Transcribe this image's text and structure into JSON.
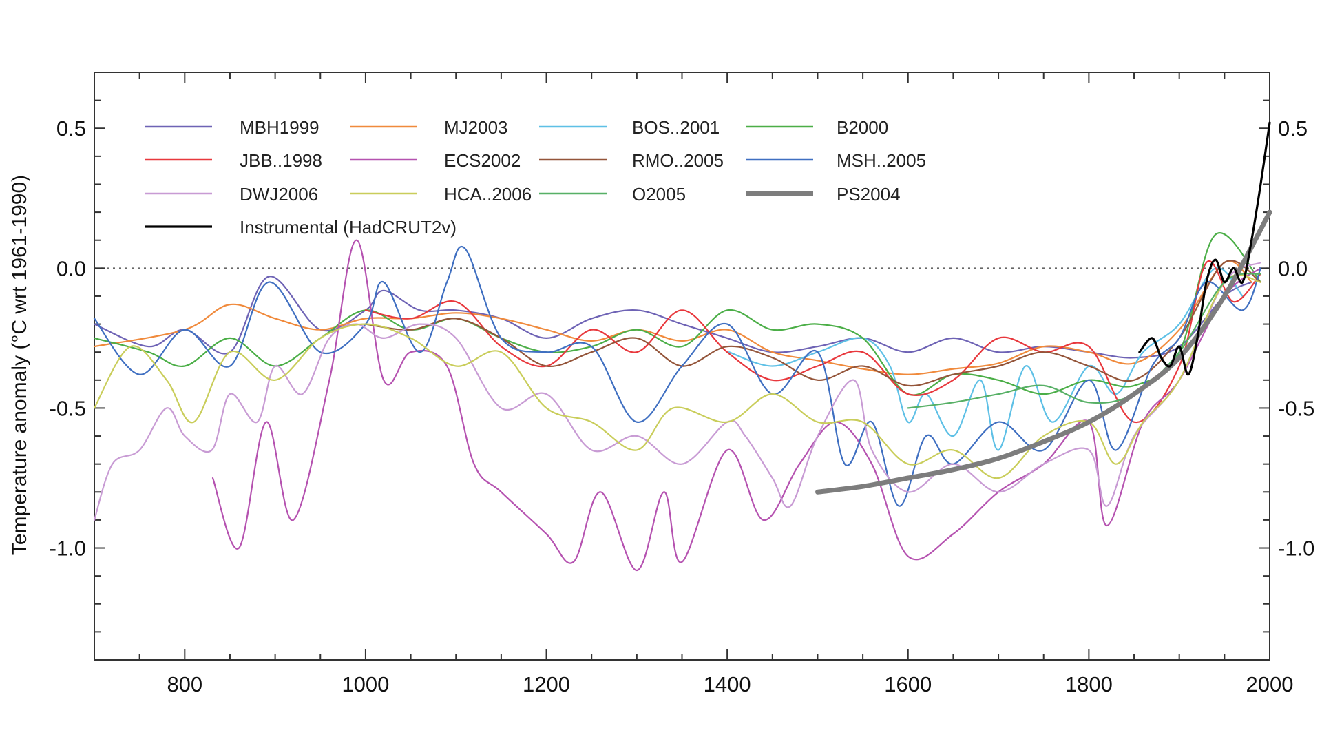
{
  "chart_data": {
    "type": "line",
    "title": "",
    "xlabel": "",
    "ylabel": "Temperature anomaly  (°C wrt 1961-1990)",
    "xlim": [
      700,
      2000
    ],
    "ylim": [
      -1.4,
      0.7
    ],
    "x_ticks": [
      800,
      1000,
      1200,
      1400,
      1600,
      1800,
      2000
    ],
    "x_tick_labels": [
      "800",
      "1000",
      "1200",
      "1400",
      "1600",
      "1800",
      "2000"
    ],
    "y_ticks": [
      0.5,
      0.0,
      -0.5,
      -1.0
    ],
    "y_tick_labels_left": [
      "0.5",
      "0.0",
      "-0.5",
      "-1.0"
    ],
    "y_tick_labels_right": [
      "0.5",
      "0.0",
      "-0.5",
      "-1.0"
    ],
    "zero_line": true,
    "legend_position": "top-left",
    "series": [
      {
        "name": "MBH1999",
        "color": "#6e63b5",
        "x": [
          700,
          760,
          800,
          850,
          893,
          950,
          1000,
          1020,
          1060,
          1100,
          1150,
          1200,
          1250,
          1300,
          1350,
          1400,
          1450,
          1500,
          1550,
          1600,
          1650,
          1700,
          1750,
          1800,
          1850,
          1900,
          1950,
          1980
        ],
        "y": [
          -0.2,
          -0.28,
          -0.22,
          -0.3,
          -0.03,
          -0.22,
          -0.15,
          -0.08,
          -0.15,
          -0.15,
          -0.18,
          -0.25,
          -0.18,
          -0.15,
          -0.2,
          -0.25,
          -0.3,
          -0.28,
          -0.25,
          -0.3,
          -0.25,
          -0.3,
          -0.28,
          -0.3,
          -0.32,
          -0.28,
          -0.1,
          -0.05
        ]
      },
      {
        "name": "MJ2003",
        "color": "#f08a3c",
        "x": [
          700,
          800,
          850,
          900,
          950,
          1000,
          1050,
          1100,
          1150,
          1200,
          1250,
          1300,
          1350,
          1400,
          1450,
          1500,
          1550,
          1600,
          1650,
          1700,
          1750,
          1800,
          1850,
          1900,
          1950,
          1980
        ],
        "y": [
          -0.28,
          -0.22,
          -0.13,
          -0.18,
          -0.22,
          -0.18,
          -0.18,
          -0.16,
          -0.18,
          -0.22,
          -0.26,
          -0.22,
          -0.26,
          -0.22,
          -0.3,
          -0.33,
          -0.36,
          -0.38,
          -0.36,
          -0.34,
          -0.28,
          -0.3,
          -0.34,
          -0.22,
          0.02,
          -0.05
        ]
      },
      {
        "name": "BOS..2001",
        "color": "#5ec0e6",
        "x": [
          1402,
          1450,
          1500,
          1550,
          1580,
          1600,
          1620,
          1650,
          1680,
          1700,
          1730,
          1760,
          1800,
          1830,
          1860,
          1900,
          1940,
          1970
        ],
        "y": [
          -0.3,
          -0.35,
          -0.3,
          -0.25,
          -0.35,
          -0.55,
          -0.45,
          -0.6,
          -0.4,
          -0.65,
          -0.35,
          -0.55,
          -0.35,
          -0.45,
          -0.3,
          -0.2,
          0.0,
          -0.1
        ]
      },
      {
        "name": "B2000",
        "color": "#4bae47",
        "x": [
          700,
          760,
          800,
          850,
          900,
          950,
          1000,
          1050,
          1100,
          1150,
          1200,
          1250,
          1300,
          1350,
          1400,
          1450,
          1500,
          1550,
          1600,
          1650,
          1700,
          1750,
          1800,
          1850,
          1900,
          1940,
          1990
        ],
        "y": [
          -0.25,
          -0.3,
          -0.35,
          -0.25,
          -0.35,
          -0.25,
          -0.15,
          -0.22,
          -0.18,
          -0.25,
          -0.3,
          -0.28,
          -0.22,
          -0.28,
          -0.15,
          -0.22,
          -0.2,
          -0.25,
          -0.45,
          -0.38,
          -0.4,
          -0.45,
          -0.4,
          -0.42,
          -0.3,
          0.12,
          -0.05
        ]
      },
      {
        "name": "JBB..1998",
        "color": "#e8383d",
        "x": [
          1000,
          1050,
          1100,
          1150,
          1200,
          1250,
          1300,
          1350,
          1400,
          1450,
          1500,
          1550,
          1600,
          1650,
          1700,
          1750,
          1800,
          1850,
          1900,
          1930,
          1960,
          1990
        ],
        "y": [
          -0.15,
          -0.18,
          -0.12,
          -0.28,
          -0.35,
          -0.22,
          -0.3,
          -0.15,
          -0.3,
          -0.4,
          -0.35,
          -0.3,
          -0.45,
          -0.4,
          -0.25,
          -0.3,
          -0.28,
          -0.55,
          -0.35,
          0.02,
          -0.12,
          -0.02
        ]
      },
      {
        "name": "ECS2002",
        "color": "#b552b0",
        "x": [
          831,
          860,
          890,
          920,
          960,
          990,
          1020,
          1050,
          1090,
          1120,
          1150,
          1200,
          1230,
          1260,
          1300,
          1330,
          1350,
          1400,
          1440,
          1480,
          1520,
          1560,
          1600,
          1650,
          1700,
          1750,
          1800,
          1820,
          1860,
          1900,
          1950,
          1990
        ],
        "y": [
          -0.75,
          -1.0,
          -0.55,
          -0.9,
          -0.4,
          0.1,
          -0.4,
          -0.3,
          -0.35,
          -0.7,
          -0.8,
          -0.95,
          -1.05,
          -0.8,
          -1.08,
          -0.8,
          -1.05,
          -0.65,
          -0.9,
          -0.7,
          -0.55,
          -0.7,
          -1.03,
          -0.95,
          -0.8,
          -0.7,
          -0.55,
          -0.92,
          -0.55,
          -0.4,
          -0.1,
          0.0
        ]
      },
      {
        "name": "RMO..2005",
        "color": "#94553a",
        "x": [
          1000,
          1050,
          1100,
          1150,
          1200,
          1250,
          1300,
          1350,
          1400,
          1450,
          1500,
          1550,
          1600,
          1650,
          1700,
          1750,
          1800,
          1850,
          1900,
          1950,
          1990
        ],
        "y": [
          -0.2,
          -0.22,
          -0.18,
          -0.25,
          -0.35,
          -0.3,
          -0.25,
          -0.35,
          -0.28,
          -0.32,
          -0.4,
          -0.35,
          -0.42,
          -0.38,
          -0.35,
          -0.3,
          -0.35,
          -0.4,
          -0.25,
          0.02,
          -0.05
        ]
      },
      {
        "name": "MSH..2005",
        "color": "#3f6fc1",
        "x": [
          700,
          750,
          800,
          850,
          893,
          950,
          1000,
          1020,
          1060,
          1090,
          1110,
          1150,
          1200,
          1250,
          1300,
          1350,
          1400,
          1450,
          1500,
          1530,
          1560,
          1590,
          1620,
          1650,
          1700,
          1750,
          1800,
          1830,
          1870,
          1900,
          1930,
          1970,
          1990
        ],
        "y": [
          -0.18,
          -0.38,
          -0.22,
          -0.35,
          -0.05,
          -0.3,
          -0.2,
          -0.05,
          -0.3,
          -0.05,
          0.07,
          -0.25,
          -0.3,
          -0.28,
          -0.55,
          -0.35,
          -0.2,
          -0.45,
          -0.3,
          -0.7,
          -0.55,
          -0.85,
          -0.6,
          -0.7,
          -0.55,
          -0.65,
          -0.4,
          -0.65,
          -0.35,
          -0.25,
          -0.05,
          -0.15,
          0.0
        ]
      },
      {
        "name": "DWJ2006",
        "color": "#c89bd4",
        "x": [
          700,
          720,
          750,
          780,
          800,
          830,
          850,
          880,
          900,
          930,
          960,
          990,
          1020,
          1060,
          1100,
          1150,
          1200,
          1250,
          1300,
          1350,
          1400,
          1420,
          1450,
          1470,
          1500,
          1540,
          1560,
          1600,
          1650,
          1700,
          1750,
          1800,
          1820,
          1850,
          1900,
          1950,
          1990
        ],
        "y": [
          -0.9,
          -0.7,
          -0.65,
          -0.5,
          -0.6,
          -0.65,
          -0.45,
          -0.55,
          -0.35,
          -0.45,
          -0.25,
          -0.2,
          -0.25,
          -0.2,
          -0.25,
          -0.5,
          -0.45,
          -0.65,
          -0.6,
          -0.7,
          -0.55,
          -0.6,
          -0.75,
          -0.85,
          -0.6,
          -0.4,
          -0.65,
          -0.8,
          -0.7,
          -0.8,
          -0.7,
          -0.65,
          -0.85,
          -0.6,
          -0.4,
          -0.05,
          0.02
        ]
      },
      {
        "name": "HCA..2006",
        "color": "#c9cd5a",
        "x": [
          700,
          740,
          780,
          810,
          850,
          900,
          950,
          1000,
          1050,
          1100,
          1150,
          1200,
          1250,
          1300,
          1340,
          1400,
          1450,
          1500,
          1550,
          1600,
          1650,
          1700,
          1750,
          1800,
          1830,
          1860,
          1900,
          1950,
          1990
        ],
        "y": [
          -0.5,
          -0.28,
          -0.4,
          -0.55,
          -0.3,
          -0.4,
          -0.25,
          -0.2,
          -0.25,
          -0.35,
          -0.3,
          -0.5,
          -0.55,
          -0.65,
          -0.5,
          -0.55,
          -0.45,
          -0.55,
          -0.55,
          -0.7,
          -0.65,
          -0.75,
          -0.6,
          -0.55,
          -0.7,
          -0.55,
          -0.4,
          -0.05,
          -0.05
        ]
      },
      {
        "name": "O2005",
        "color": "#57b066",
        "x": [
          1600,
          1650,
          1700,
          1750,
          1800,
          1850,
          1900,
          1950,
          1990
        ],
        "y": [
          -0.5,
          -0.48,
          -0.45,
          -0.42,
          -0.48,
          -0.45,
          -0.3,
          -0.05,
          -0.02
        ]
      },
      {
        "name": "PS2004",
        "color": "#7d7d7d",
        "width": "thick",
        "x": [
          1500,
          1550,
          1600,
          1650,
          1700,
          1750,
          1800,
          1850,
          1900,
          1950,
          2000
        ],
        "y": [
          -0.8,
          -0.78,
          -0.75,
          -0.72,
          -0.68,
          -0.62,
          -0.55,
          -0.45,
          -0.32,
          -0.1,
          0.2
        ]
      },
      {
        "name": "Instrumental (HadCRUT2v)",
        "color": "#000000",
        "x": [
          1856,
          1870,
          1880,
          1890,
          1900,
          1910,
          1920,
          1930,
          1940,
          1950,
          1960,
          1970,
          1980,
          1990,
          2000
        ],
        "y": [
          -0.3,
          -0.25,
          -0.32,
          -0.35,
          -0.28,
          -0.38,
          -0.25,
          -0.05,
          0.03,
          -0.05,
          0.0,
          -0.05,
          0.1,
          0.3,
          0.52
        ]
      }
    ]
  }
}
